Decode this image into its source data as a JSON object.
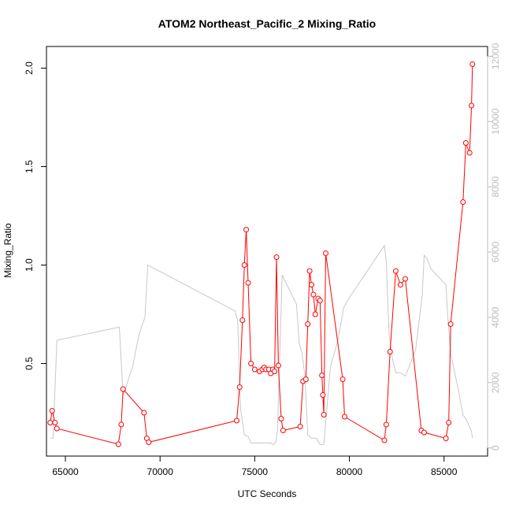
{
  "chart_data": {
    "type": "line",
    "title": "ATOM2 Northeast_Pacific_2 Mixing_Ratio",
    "xlabel": "UTC Seconds",
    "ylabel": "Mixing_Ratio",
    "xlim": [
      64000,
      87300
    ],
    "ylim": [
      0.03,
      2.11
    ],
    "y2lim": [
      -250,
      12300
    ],
    "x_ticks": [
      65000,
      70000,
      75000,
      80000,
      85000
    ],
    "y_ticks": [
      0.5,
      1.0,
      1.5,
      2.0
    ],
    "y2_ticks": [
      0,
      2000,
      4000,
      6000,
      8000,
      10000,
      12000
    ],
    "x_tick_labels": [
      "65000",
      "70000",
      "75000",
      "80000",
      "85000"
    ],
    "y_tick_labels": [
      "0.5",
      "1.0",
      "1.5",
      "2.0"
    ],
    "y2_tick_labels": [
      "0",
      "2000",
      "4000",
      "6000",
      "8000",
      "10000",
      "12000"
    ],
    "grid": false,
    "colors": {
      "mixing_ratio": "#ff0000",
      "altitude": "#c8c8c8",
      "axis": "#000000",
      "right_axis": "#bdbdbd"
    },
    "series": [
      {
        "name": "",
        "axis": "left",
        "style": "line+open-circles",
        "x": [
          64200,
          64300,
          64450,
          64550,
          67800,
          67950,
          68050,
          69150,
          69300,
          69400,
          74050,
          74200,
          74350,
          74450,
          74550,
          74650,
          74800,
          75000,
          75250,
          75400,
          75500,
          75600,
          75750,
          75850,
          75950,
          76050,
          76150,
          76250,
          76400,
          76500,
          77400,
          77550,
          77700,
          77800,
          77900,
          78000,
          78100,
          78200,
          78350,
          78450,
          78550,
          78600,
          78650,
          78750,
          79650,
          79750,
          81850,
          81950,
          82150,
          82450,
          82700,
          82950,
          83800,
          83950,
          85100,
          85250,
          85350,
          86000,
          86150,
          86350,
          86450,
          86500
        ],
        "y": [
          0.2,
          0.26,
          0.2,
          0.17,
          0.09,
          0.19,
          0.37,
          0.25,
          0.12,
          0.1,
          0.21,
          0.38,
          0.72,
          1.0,
          1.18,
          0.91,
          0.5,
          0.47,
          0.46,
          0.47,
          0.48,
          0.47,
          0.47,
          0.45,
          0.47,
          0.46,
          1.04,
          0.49,
          0.22,
          0.16,
          0.18,
          0.41,
          0.42,
          0.7,
          0.97,
          0.9,
          0.85,
          0.75,
          0.83,
          0.82,
          0.44,
          0.34,
          0.24,
          1.06,
          0.42,
          0.23,
          0.11,
          0.19,
          0.56,
          0.97,
          0.9,
          0.93,
          0.16,
          0.15,
          0.12,
          0.2,
          0.7,
          1.32,
          1.62,
          1.57,
          1.81,
          2.02
        ]
      },
      {
        "name": "",
        "axis": "right",
        "style": "line",
        "x": [
          64200,
          64350,
          64550,
          67850,
          68050,
          68550,
          68900,
          69200,
          69350,
          73950,
          74100,
          74250,
          74450,
          74650,
          74800,
          75500,
          75850,
          76000,
          76100,
          76200,
          76450,
          77200,
          77350,
          77500,
          77650,
          77800,
          78000,
          78250,
          78450,
          78650,
          79000,
          79400,
          79700,
          80000,
          81850,
          81950,
          82100,
          82250,
          82450,
          82700,
          82950,
          83500,
          83850,
          83950,
          84100,
          84300,
          85100,
          85200,
          85350,
          85500,
          85750,
          86000,
          86150,
          86300,
          86450,
          86500
        ],
        "y": [
          300,
          300,
          3300,
          3700,
          1600,
          2500,
          3500,
          4000,
          5600,
          4200,
          3900,
          1200,
          400,
          350,
          150,
          150,
          150,
          100,
          150,
          500,
          5300,
          4400,
          3200,
          2900,
          2200,
          400,
          300,
          300,
          100,
          100,
          2500,
          3300,
          4300,
          4600,
          6200,
          5700,
          3500,
          2800,
          2300,
          2300,
          2200,
          3000,
          4700,
          5900,
          5800,
          5500,
          5000,
          4000,
          2900,
          2500,
          1800,
          1000,
          900,
          700,
          500,
          300
        ]
      }
    ]
  }
}
